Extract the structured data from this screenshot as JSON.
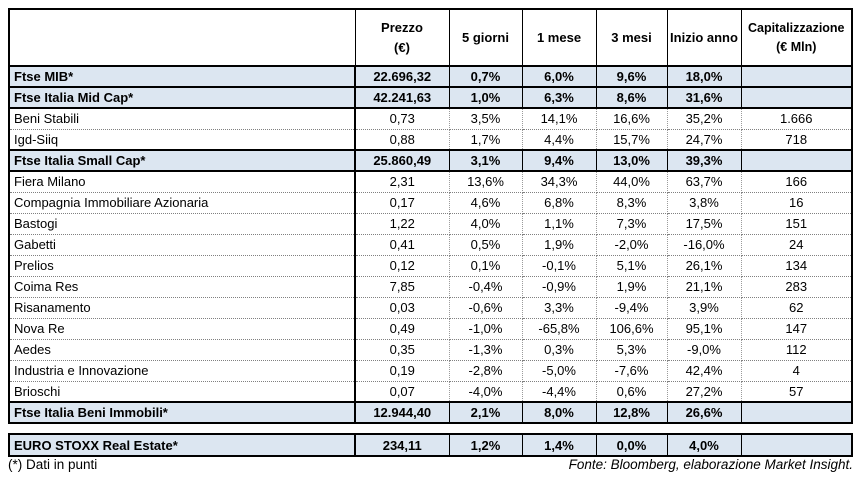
{
  "header": {
    "columns": [
      {
        "id": "name",
        "label": ""
      },
      {
        "id": "prezzo",
        "label": "Prezzo\n(€)"
      },
      {
        "id": "d5",
        "label": "5 giorni"
      },
      {
        "id": "m1",
        "label": "1 mese"
      },
      {
        "id": "m3",
        "label": "3 mesi"
      },
      {
        "id": "ytd",
        "label": "Inizio anno"
      },
      {
        "id": "cap",
        "label": "Capitalizzazione\n(€ Mln)"
      }
    ]
  },
  "main_table": {
    "rows": [
      {
        "type": "index",
        "name": "Ftse MIB*",
        "prezzo": "22.696,32",
        "d5": "0,7%",
        "m1": "6,0%",
        "m3": "9,6%",
        "ytd": "18,0%",
        "cap": ""
      },
      {
        "type": "index",
        "name": "Ftse Italia Mid Cap*",
        "prezzo": "42.241,63",
        "d5": "1,0%",
        "m1": "6,3%",
        "m3": "8,6%",
        "ytd": "31,6%",
        "cap": ""
      },
      {
        "type": "stock",
        "name": "Beni Stabili",
        "prezzo": "0,73",
        "d5": "3,5%",
        "m1": "14,1%",
        "m3": "16,6%",
        "ytd": "35,2%",
        "cap": "1.666"
      },
      {
        "type": "stock",
        "name": "Igd-Siiq",
        "prezzo": "0,88",
        "d5": "1,7%",
        "m1": "4,4%",
        "m3": "15,7%",
        "ytd": "24,7%",
        "cap": "718"
      },
      {
        "type": "index",
        "name": "Ftse Italia Small Cap*",
        "prezzo": "25.860,49",
        "d5": "3,1%",
        "m1": "9,4%",
        "m3": "13,0%",
        "ytd": "39,3%",
        "cap": ""
      },
      {
        "type": "stock",
        "name": "Fiera Milano",
        "prezzo": "2,31",
        "d5": "13,6%",
        "m1": "34,3%",
        "m3": "44,0%",
        "ytd": "63,7%",
        "cap": "166"
      },
      {
        "type": "stock",
        "name": "Compagnia Immobiliare Azionaria",
        "prezzo": "0,17",
        "d5": "4,6%",
        "m1": "6,8%",
        "m3": "8,3%",
        "ytd": "3,8%",
        "cap": "16"
      },
      {
        "type": "stock",
        "name": "Bastogi",
        "prezzo": "1,22",
        "d5": "4,0%",
        "m1": "1,1%",
        "m3": "7,3%",
        "ytd": "17,5%",
        "cap": "151"
      },
      {
        "type": "stock",
        "name": "Gabetti",
        "prezzo": "0,41",
        "d5": "0,5%",
        "m1": "1,9%",
        "m3": "-2,0%",
        "ytd": "-16,0%",
        "cap": "24"
      },
      {
        "type": "stock",
        "name": "Prelios",
        "prezzo": "0,12",
        "d5": "0,1%",
        "m1": "-0,1%",
        "m3": "5,1%",
        "ytd": "26,1%",
        "cap": "134"
      },
      {
        "type": "stock",
        "name": "Coima Res",
        "prezzo": "7,85",
        "d5": "-0,4%",
        "m1": "-0,9%",
        "m3": "1,9%",
        "ytd": "21,1%",
        "cap": "283"
      },
      {
        "type": "stock",
        "name": "Risanamento",
        "prezzo": "0,03",
        "d5": "-0,6%",
        "m1": "3,3%",
        "m3": "-9,4%",
        "ytd": "3,9%",
        "cap": "62"
      },
      {
        "type": "stock",
        "name": "Nova Re",
        "prezzo": "0,49",
        "d5": "-1,0%",
        "m1": "-65,8%",
        "m3": "106,6%",
        "ytd": "95,1%",
        "cap": "147"
      },
      {
        "type": "stock",
        "name": "Aedes",
        "prezzo": "0,35",
        "d5": "-1,3%",
        "m1": "0,3%",
        "m3": "5,3%",
        "ytd": "-9,0%",
        "cap": "112"
      },
      {
        "type": "stock",
        "name": "Industria e Innovazione",
        "prezzo": "0,19",
        "d5": "-2,8%",
        "m1": "-5,0%",
        "m3": "-7,6%",
        "ytd": "42,4%",
        "cap": "4"
      },
      {
        "type": "stock",
        "name": "Brioschi",
        "prezzo": "0,07",
        "d5": "-4,0%",
        "m1": "-4,4%",
        "m3": "0,6%",
        "ytd": "27,2%",
        "cap": "57"
      },
      {
        "type": "index",
        "name": "Ftse Italia Beni Immobili*",
        "prezzo": "12.944,40",
        "d5": "2,1%",
        "m1": "8,0%",
        "m3": "12,8%",
        "ytd": "26,6%",
        "cap": ""
      }
    ]
  },
  "euro_stoxx_table": {
    "rows": [
      {
        "type": "index",
        "name": "EURO STOXX Real Estate*",
        "prezzo": "234,11",
        "d5": "1,2%",
        "m1": "1,4%",
        "m3": "0,0%",
        "ytd": "4,0%",
        "cap": ""
      }
    ]
  },
  "footer": {
    "note": "(*) Dati in punti",
    "source": "Fonte: Bloomberg, elaborazione Market Insight."
  },
  "colors": {
    "highlight_row_bg": "#dce6f1",
    "border": "#000000",
    "text": "#000000"
  }
}
